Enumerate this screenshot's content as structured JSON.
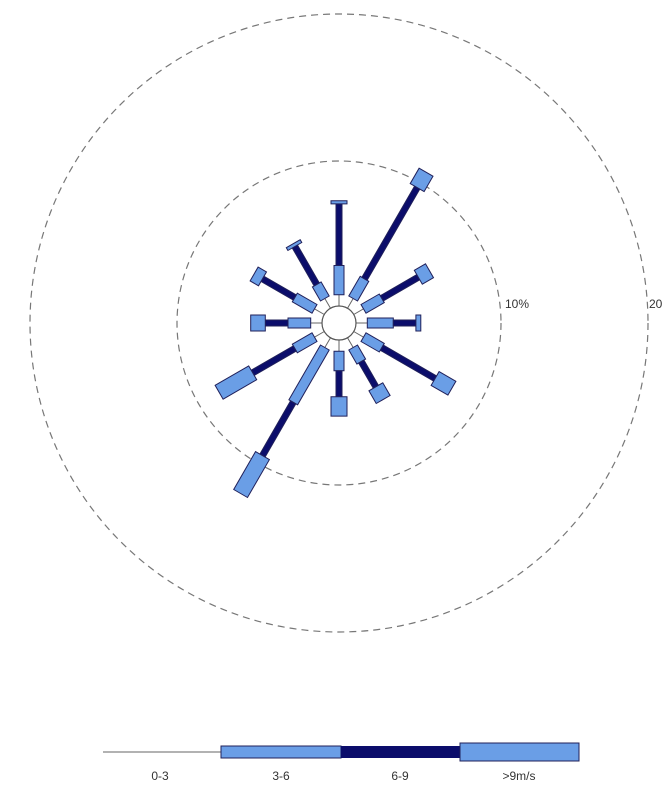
{
  "chart_data": {
    "type": "windrose",
    "radial_axis": {
      "unit": "%",
      "rings": [
        10,
        20
      ],
      "ring_labels": [
        "10%",
        "20"
      ]
    },
    "speed_bins": [
      "0-3",
      "3-6",
      "6-9",
      ">9m/s"
    ],
    "legend": {
      "labels": [
        "0-3",
        "3-6",
        "6-9",
        ">9m/s"
      ],
      "placement": "bottom"
    },
    "colors": {
      "bin_0_3": "#666666",
      "bin_3_6": "#6a9ee6",
      "bin_6_9": "#0b0d6b",
      "bin_gt9": "#6a9ee6",
      "ring": "#777777"
    },
    "directions": [
      {
        "bearing": 0,
        "values": [
          0.7,
          1.8,
          3.8,
          0.2
        ]
      },
      {
        "bearing": 30,
        "values": [
          0.7,
          1.4,
          6.5,
          1.1
        ]
      },
      {
        "bearing": 60,
        "values": [
          0.7,
          1.3,
          2.6,
          0.8
        ]
      },
      {
        "bearing": 90,
        "values": [
          0.7,
          1.6,
          1.4,
          0.3
        ]
      },
      {
        "bearing": 120,
        "values": [
          0.7,
          1.3,
          3.8,
          1.2
        ]
      },
      {
        "bearing": 150,
        "values": [
          0.7,
          1.0,
          1.8,
          0.9
        ]
      },
      {
        "bearing": 180,
        "values": [
          0.7,
          1.2,
          1.6,
          1.2
        ]
      },
      {
        "bearing": 210,
        "values": [
          0.7,
          3.9,
          3.8,
          2.7
        ]
      },
      {
        "bearing": 240,
        "values": [
          0.7,
          1.4,
          3.0,
          2.4
        ]
      },
      {
        "bearing": 270,
        "values": [
          0.7,
          1.4,
          1.4,
          0.9
        ]
      },
      {
        "bearing": 300,
        "values": [
          0.7,
          1.4,
          2.3,
          0.6
        ]
      },
      {
        "bearing": 330,
        "values": [
          0.7,
          1.0,
          2.7,
          0.2
        ]
      }
    ]
  }
}
